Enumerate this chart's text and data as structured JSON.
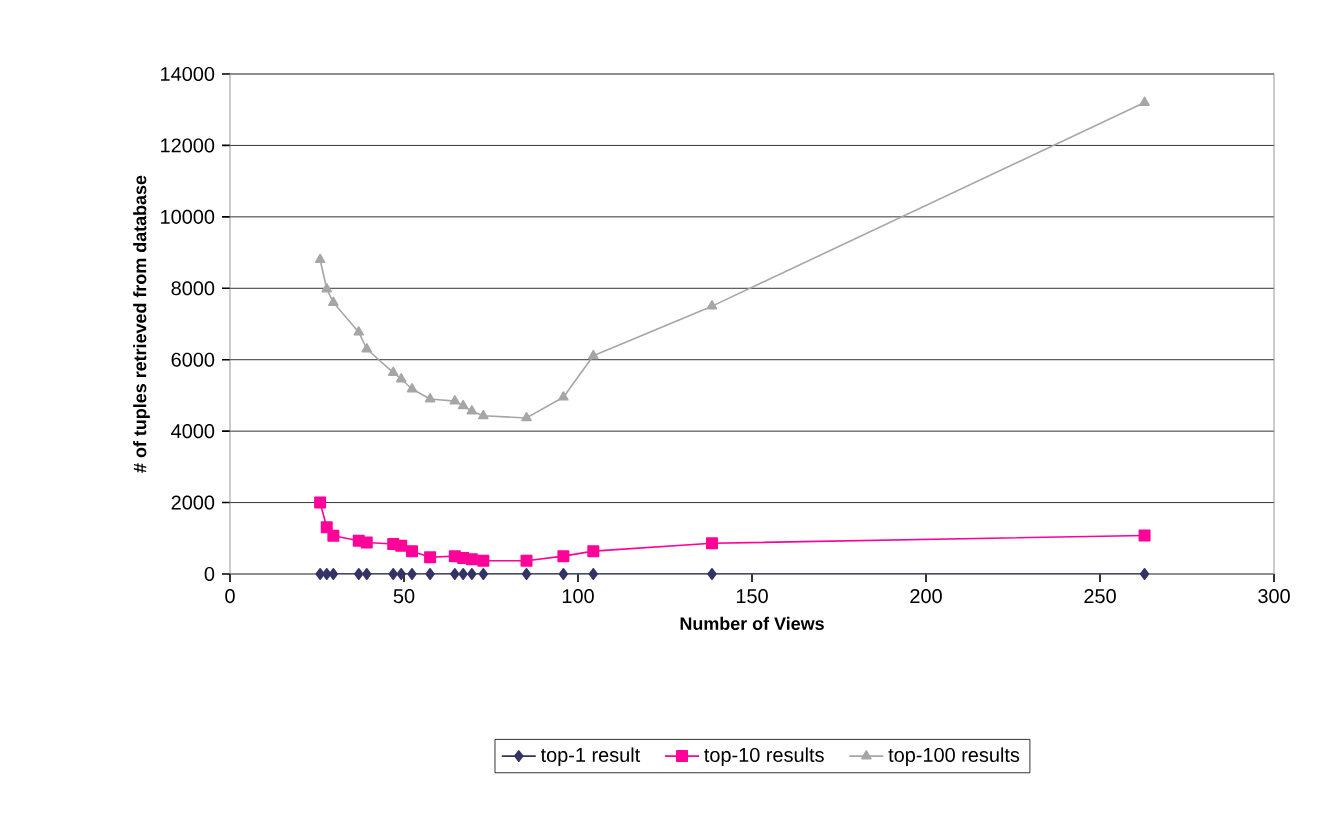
{
  "chart_data": {
    "type": "line",
    "xlabel": "Number of Views",
    "ylabel": "# of tuples retrieved from database",
    "x": [
      25.9,
      27.8,
      29.7,
      37,
      39.3,
      46.9,
      49.2,
      52.3,
      57.5,
      64.6,
      67,
      69.5,
      72.8,
      85.2,
      95.8,
      104.4,
      138.5,
      262.8
    ],
    "series": [
      {
        "name": "top-1 result",
        "color": "#333366",
        "marker": "diamond",
        "values": [
          0,
          0,
          0,
          0,
          0,
          0,
          0,
          0,
          0,
          0,
          0,
          0,
          0,
          0,
          0,
          0,
          0,
          0
        ]
      },
      {
        "name": "top-10 results",
        "color": "#ff0099",
        "marker": "square",
        "values": [
          2000,
          1310,
          1070,
          930,
          880,
          840,
          790,
          640,
          470,
          500,
          450,
          410,
          370,
          370,
          500,
          640,
          860,
          1080
        ]
      },
      {
        "name": "top-100 results",
        "color": "#a6a6a6",
        "marker": "triangle",
        "values": [
          8800,
          7980,
          7600,
          6770,
          6300,
          5640,
          5460,
          5180,
          4900,
          4840,
          4710,
          4560,
          4430,
          4370,
          4950,
          6110,
          7500,
          13200
        ]
      }
    ],
    "xlim": [
      0,
      300
    ],
    "xticks": [
      0,
      50,
      100,
      150,
      200,
      250,
      300
    ],
    "ylim": [
      0,
      14000
    ],
    "yticks": [
      0,
      2000,
      4000,
      6000,
      8000,
      10000,
      12000,
      14000
    ],
    "grid": "y",
    "legend": "bottom"
  }
}
